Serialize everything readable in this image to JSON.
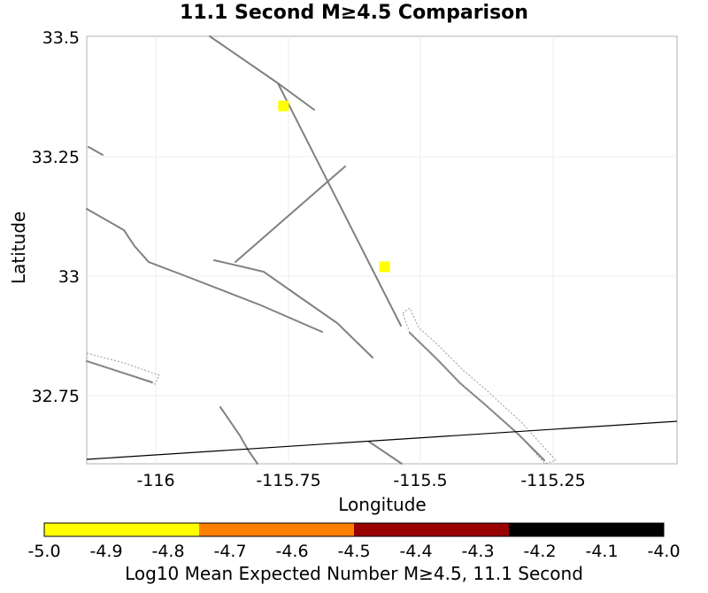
{
  "title": "11.1 Second M≥4.5 Comparison",
  "x_axis": {
    "label": "Longitude",
    "ticks": [
      "-116",
      "-115.75",
      "-115.5",
      "-115.25"
    ]
  },
  "y_axis": {
    "label": "Latitude",
    "ticks": [
      "33.5",
      "33.25",
      "33",
      "32.75"
    ]
  },
  "map": {
    "lon_range": [
      -116.13,
      -115.02
    ],
    "lat_range": [
      32.61,
      33.5
    ],
    "fault_color": "#808080",
    "border_color": "#000000",
    "sites": [
      {
        "lon": -115.76,
        "lat": 33.355,
        "color": "#ffff00"
      },
      {
        "lon": -115.57,
        "lat": 33.02,
        "color": "#ffff00"
      }
    ]
  },
  "colorbar": {
    "label": "Log10 Mean Expected Number M≥4.5, 11.1 Second",
    "range": [
      -5.0,
      -4.0
    ],
    "ticks": [
      "-5.0",
      "-4.9",
      "-4.8",
      "-4.7",
      "-4.6",
      "-4.5",
      "-4.4",
      "-4.3",
      "-4.2",
      "-4.1",
      "-4.0"
    ],
    "segments": [
      {
        "from": -5.0,
        "to": -4.75,
        "color": "#ffff00"
      },
      {
        "from": -4.75,
        "to": -4.5,
        "color": "#ff7f00"
      },
      {
        "from": -4.5,
        "to": -4.25,
        "color": "#990000"
      },
      {
        "from": -4.25,
        "to": -4.0,
        "color": "#000000"
      }
    ]
  }
}
